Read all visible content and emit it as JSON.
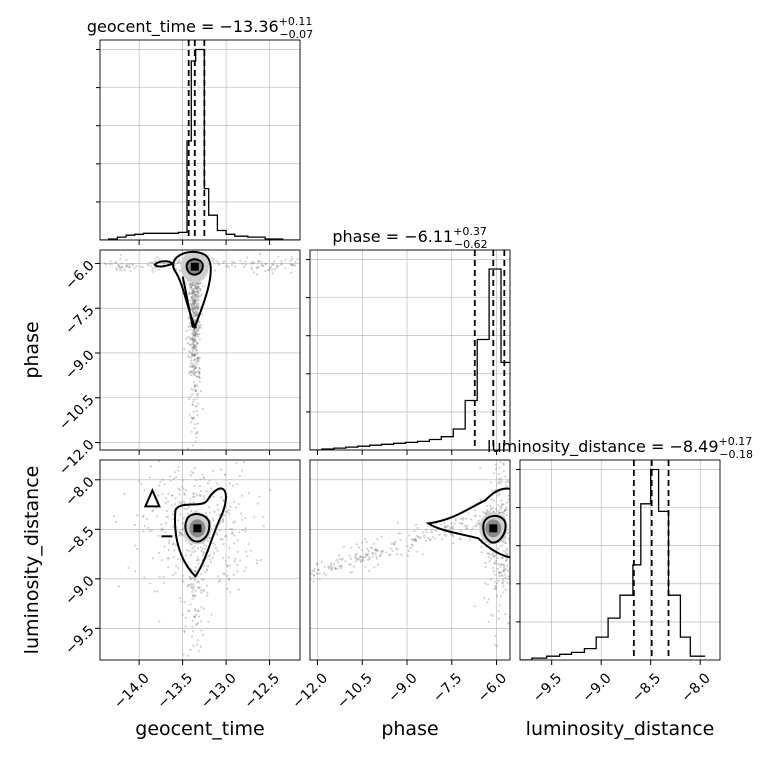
{
  "chart_data": {
    "type": "corner",
    "parameters": [
      "geocent_time",
      "phase",
      "luminosity_distance"
    ],
    "titles": [
      {
        "param": "geocent_time",
        "name": "geocent_time = −13.36",
        "plus": "+0.11",
        "minus": "−0.07"
      },
      {
        "param": "phase",
        "name": "phase = −6.11",
        "plus": "+0.37",
        "minus": "−0.62"
      },
      {
        "param": "luminosity_distance",
        "name": "luminosity_distance = −8.49",
        "plus": "+0.17",
        "minus": "−0.18"
      }
    ],
    "axis_labels": {
      "geocent_time": "geocent_time",
      "phase": "phase",
      "luminosity_distance": "luminosity_distance"
    },
    "ranges": {
      "geocent_time": [
        -14.45,
        -12.15
      ],
      "phase": [
        -12.25,
        -5.55
      ],
      "luminosity_distance": [
        -9.82,
        -7.8
      ]
    },
    "ticks": {
      "geocent_time": [
        {
          "v": -14.0,
          "label": "−14.0"
        },
        {
          "v": -13.5,
          "label": "−13.5"
        },
        {
          "v": -13.0,
          "label": "−13.0"
        },
        {
          "v": -12.5,
          "label": "−12.5"
        }
      ],
      "phase": [
        {
          "v": -12.0,
          "label": "−12.0"
        },
        {
          "v": -10.5,
          "label": "−10.5"
        },
        {
          "v": -9.0,
          "label": "−9.0"
        },
        {
          "v": -7.5,
          "label": "−7.5"
        },
        {
          "v": -6.0,
          "label": "−6.0"
        }
      ],
      "luminosity_distance": [
        {
          "v": -9.5,
          "label": "−9.5"
        },
        {
          "v": -9.0,
          "label": "−9.0"
        },
        {
          "v": -8.5,
          "label": "−8.5"
        },
        {
          "v": -8.0,
          "label": "−8.0"
        }
      ]
    },
    "quantiles": {
      "geocent_time": [
        -13.43,
        -13.36,
        -13.25
      ],
      "phase": [
        -6.73,
        -6.11,
        -5.74
      ],
      "luminosity_distance": [
        -8.67,
        -8.49,
        -8.32
      ]
    },
    "histograms": {
      "geocent_time": {
        "edges": [
          -14.45,
          -14.35,
          -14.25,
          -14.15,
          -14.05,
          -13.95,
          -13.85,
          -13.75,
          -13.65,
          -13.55,
          -13.45,
          -13.4,
          -13.35,
          -13.3,
          -13.25,
          -13.2,
          -13.1,
          -13.0,
          -12.9,
          -12.75,
          -12.55,
          -12.35,
          -12.15
        ],
        "counts": [
          0.0,
          0.5,
          1.5,
          2.5,
          3.0,
          3.5,
          3.5,
          3.5,
          3.5,
          4.0,
          52.0,
          94.0,
          100.0,
          100.0,
          27.0,
          13.0,
          5.0,
          3.0,
          2.0,
          1.5,
          0.5,
          0.0
        ]
      },
      "phase": {
        "edges": [
          -12.25,
          -11.85,
          -11.45,
          -11.05,
          -10.65,
          -10.25,
          -9.85,
          -9.45,
          -9.05,
          -8.65,
          -8.25,
          -7.85,
          -7.45,
          -7.05,
          -6.65,
          -6.25,
          -5.85,
          -5.55
        ],
        "counts": [
          0.0,
          0.5,
          1.0,
          1.5,
          2.0,
          2.5,
          3.0,
          3.5,
          4.0,
          4.5,
          5.5,
          7.0,
          11.0,
          26.0,
          58.0,
          95.0,
          46.0
        ]
      },
      "luminosity_distance": {
        "edges": [
          -9.82,
          -9.7,
          -9.55,
          -9.42,
          -9.3,
          -9.17,
          -9.05,
          -8.93,
          -8.81,
          -8.68,
          -8.6,
          -8.5,
          -8.42,
          -8.32,
          -8.2,
          -8.1,
          -7.95
        ],
        "counts": [
          0.0,
          1.0,
          2.0,
          3.0,
          4.0,
          6.0,
          12.0,
          22.0,
          34.0,
          50.0,
          82.0,
          100.0,
          78.0,
          34.0,
          12.0,
          2.0
        ]
      }
    },
    "hist_ylim": [
      0,
      105
    ],
    "scatter_cloud": {
      "geocent_time_vs_phase": {
        "center": [
          -13.36,
          -6.11
        ],
        "spread": [
          0.04,
          0.25
        ]
      },
      "geocent_time_vs_luminosity_distance": {
        "center": [
          -13.33,
          -8.49
        ],
        "spread": [
          0.25,
          0.25
        ]
      },
      "phase_vs_luminosity_distance": {
        "center": [
          -6.11,
          -8.49
        ],
        "spread": [
          0.3,
          0.15
        ]
      }
    },
    "grid": true,
    "colors": {
      "line": "#000000",
      "scatter": "#7a7a7a",
      "grid": "#b0b0b0",
      "density_dark": "#000000",
      "density_light": "#cfcfcf"
    }
  }
}
